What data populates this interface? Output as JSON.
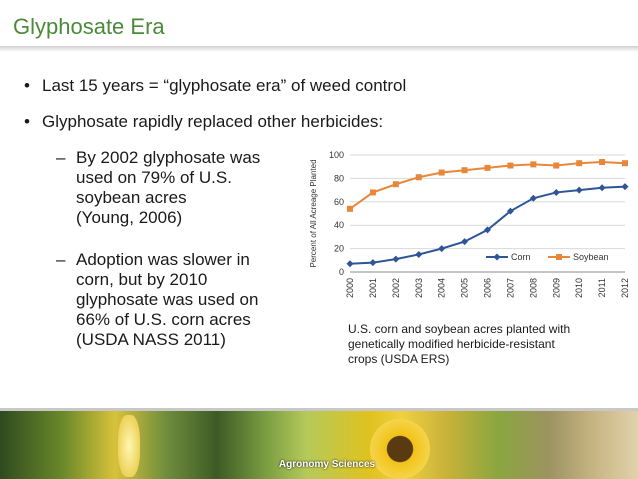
{
  "slide": {
    "title": "Glyphosate Era",
    "bullets": [
      {
        "marker": "•",
        "text": "Last 15 years = “glyphosate era” of weed control"
      },
      {
        "marker": "•",
        "text": "Glyphosate rapidly replaced other herbicides:"
      }
    ],
    "sub_bullets": [
      {
        "marker": "–",
        "lines": [
          "By 2002 glyphosate was",
          "used on 79% of U.S.",
          "soybean acres",
          "(Young, 2006)"
        ]
      },
      {
        "marker": "–",
        "lines": [
          "Adoption was slower in",
          "corn, but by 2010",
          "glyphosate was used on",
          "66% of U.S. corn acres",
          "(USDA NASS 2011)"
        ]
      }
    ],
    "caption_lines": [
      "U.S. corn and soybean acres planted with",
      "genetically modified herbicide-resistant",
      "crops (USDA ERS)"
    ],
    "footer_label": "Agronomy Sciences"
  },
  "chart_data": {
    "type": "line",
    "ylabel": "Percent of All Acreage Planted",
    "xlabel": "",
    "ylim": [
      0,
      100
    ],
    "yticks": [
      0,
      20,
      40,
      60,
      80,
      100
    ],
    "x": [
      "2000",
      "2001",
      "2002",
      "2003",
      "2004",
      "2005",
      "2006",
      "2007",
      "2008",
      "2009",
      "2010",
      "2011",
      "2012"
    ],
    "grid": true,
    "legend_position": "bottom-right",
    "series": [
      {
        "name": "Corn",
        "color": "#2e5597",
        "marker": "diamond",
        "values": [
          7,
          8,
          11,
          15,
          20,
          26,
          36,
          52,
          63,
          68,
          70,
          72,
          73
        ]
      },
      {
        "name": "Soybean",
        "color": "#e8873a",
        "marker": "square",
        "values": [
          54,
          68,
          75,
          81,
          85,
          87,
          89,
          91,
          92,
          91,
          93,
          94,
          93
        ]
      }
    ]
  }
}
